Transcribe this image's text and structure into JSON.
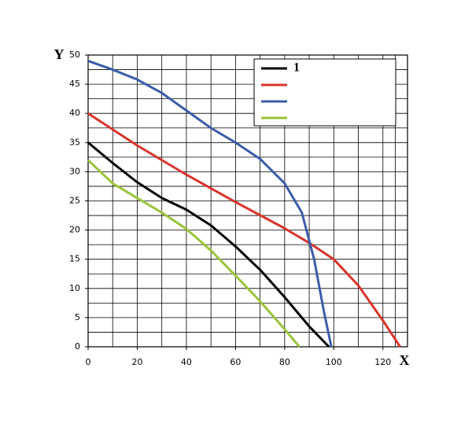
{
  "chart_data": {
    "type": "line",
    "x_label": "X",
    "y_label": "Y",
    "xlim": [
      0,
      130
    ],
    "ylim": [
      0,
      50
    ],
    "xticks": [
      0,
      20,
      40,
      60,
      80,
      100,
      120
    ],
    "yticks": [
      0,
      5,
      10,
      15,
      20,
      25,
      30,
      35,
      40,
      45,
      50
    ],
    "grid": true,
    "legend": "upper right",
    "series": [
      {
        "name": "1",
        "color": "#000000",
        "x": [
          0,
          10,
          20,
          30,
          40,
          50,
          60,
          70,
          80,
          90,
          98
        ],
        "values": [
          35,
          31.5,
          28.2,
          25.5,
          23.5,
          20.8,
          17.2,
          13.2,
          8.5,
          3.5,
          0
        ]
      },
      {
        "color": "#d9342b",
        "x": [
          0,
          20,
          40,
          60,
          80,
          90,
          100,
          110,
          120,
          127
        ],
        "values": [
          40,
          34.5,
          29.5,
          24.8,
          20.3,
          17.8,
          15,
          10.5,
          4.5,
          0
        ]
      },
      {
        "color": "#3a5da8",
        "x": [
          0,
          10,
          20,
          30,
          40,
          50,
          60,
          70,
          80,
          87,
          92,
          96,
          99
        ],
        "values": [
          49,
          47.5,
          45.8,
          43.5,
          40.5,
          37.5,
          35,
          32.2,
          28,
          23,
          15,
          6,
          0
        ]
      },
      {
        "color": "#9bc43b",
        "x": [
          0,
          10,
          20,
          30,
          40,
          50,
          60,
          70,
          80,
          86
        ],
        "values": [
          32,
          28,
          25.5,
          23,
          20.2,
          16.5,
          12.2,
          7.8,
          3,
          0
        ]
      }
    ]
  }
}
